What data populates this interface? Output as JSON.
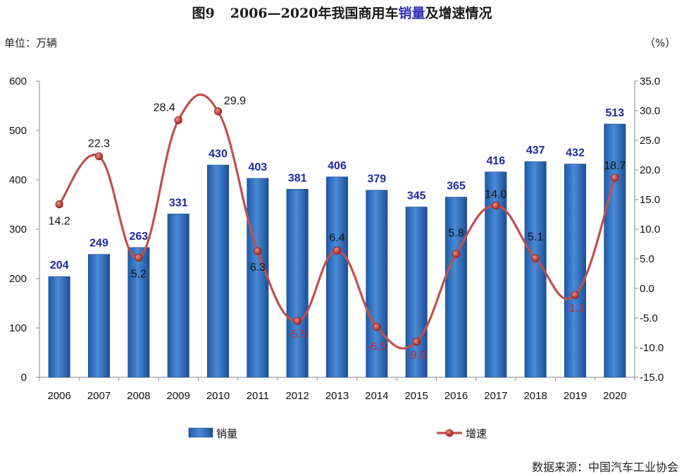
{
  "title": {
    "fig_no": "图9",
    "text_before": "2006—2020年我国商用车",
    "text_highlight": "销量",
    "text_after": "及增速情况"
  },
  "unit_left": "单位：万辆",
  "unit_right": "（%）",
  "source": "数据来源：中国汽车工业协会",
  "colors": {
    "bar": "#2f6db5",
    "line": "#c0504d",
    "marker": "#b5302c",
    "bar_label": "#1f28a8",
    "negative_label": "#c0283a"
  },
  "chart_data": {
    "type": "bar+line",
    "categories": [
      "2006",
      "2007",
      "2008",
      "2009",
      "2010",
      "2011",
      "2012",
      "2013",
      "2014",
      "2015",
      "2016",
      "2017",
      "2018",
      "2019",
      "2020"
    ],
    "series": [
      {
        "name": "销量",
        "type": "bar",
        "axis": "left",
        "values": [
          204,
          249,
          263,
          331,
          430,
          403,
          381,
          406,
          379,
          345,
          365,
          416,
          437,
          432,
          513
        ]
      },
      {
        "name": "增速",
        "type": "line",
        "axis": "right",
        "values": [
          14.2,
          22.3,
          5.2,
          28.4,
          29.9,
          6.3,
          -5.5,
          6.4,
          -6.5,
          -9.0,
          5.8,
          14.0,
          5.1,
          -1.1,
          18.7
        ]
      }
    ],
    "y_left": {
      "min": 0,
      "max": 600,
      "ticks": [
        "0",
        "100",
        "200",
        "300",
        "400",
        "500",
        "600"
      ]
    },
    "y_right": {
      "min": -15,
      "max": 35,
      "ticks": [
        "-15.0",
        "-10.0",
        "-5.0",
        "0.0",
        "5.0",
        "10.0",
        "15.0",
        "20.0",
        "25.0",
        "30.0",
        "35.0"
      ]
    },
    "bar_labels": [
      "204",
      "249",
      "263",
      "331",
      "430",
      "403",
      "381",
      "406",
      "379",
      "345",
      "365",
      "416",
      "437",
      "432",
      "513"
    ],
    "line_labels": [
      "14.2",
      "22.3",
      "5.2",
      "28.4",
      "29.9",
      "6.3",
      "-5.5",
      "6.4",
      "-6.5",
      "-9.0",
      "5.8",
      "14.0",
      "5.1",
      "-1.1",
      "18.7"
    ],
    "legend": {
      "placement": "bottom",
      "items": [
        "销量",
        "增速"
      ]
    },
    "grid": false
  }
}
